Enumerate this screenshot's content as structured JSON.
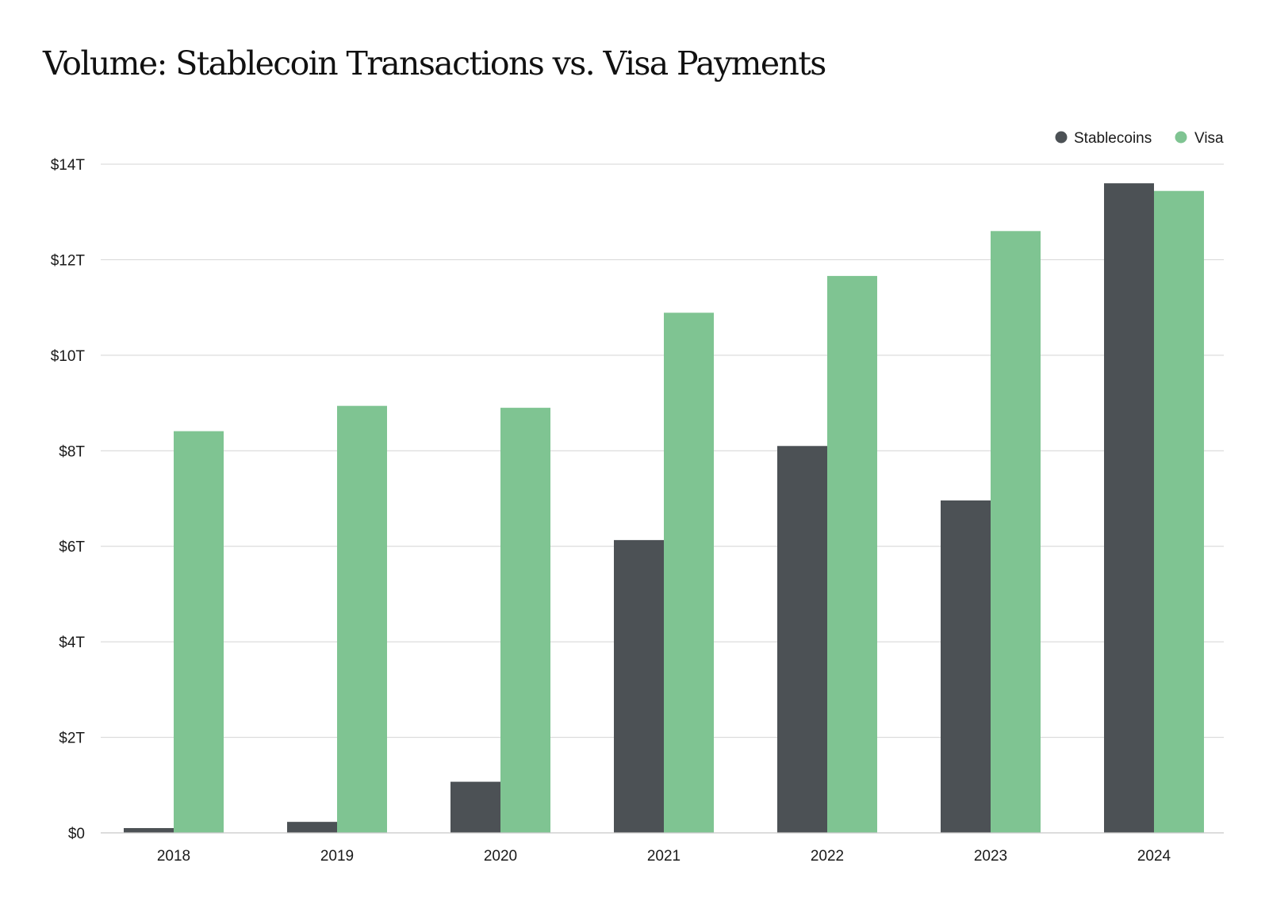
{
  "colors": {
    "stablecoins": "#4c5155",
    "visa": "#7fc492",
    "gridline": "#d4d4d4",
    "axis": "#c8c8c8",
    "text": "#1a1a1a"
  },
  "chart_data": {
    "type": "bar",
    "title": "Volume: Stablecoin Transactions vs. Visa Payments",
    "xlabel": "",
    "ylabel": "",
    "categories": [
      "2018",
      "2019",
      "2020",
      "2021",
      "2022",
      "2023",
      "2024"
    ],
    "series": [
      {
        "name": "Stablecoins",
        "color": "#4c5155",
        "values": [
          0.1,
          0.23,
          1.07,
          6.13,
          8.1,
          6.96,
          13.6
        ]
      },
      {
        "name": "Visa",
        "color": "#7fc492",
        "values": [
          8.41,
          8.94,
          8.9,
          10.89,
          11.66,
          12.6,
          13.44
        ]
      }
    ],
    "ylim": [
      0,
      14
    ],
    "yticks": [
      0,
      2,
      4,
      6,
      8,
      10,
      12,
      14
    ],
    "ytick_labels": [
      "$0",
      "$2T",
      "$4T",
      "$6T",
      "$8T",
      "$10T",
      "$12T",
      "$14T"
    ],
    "grid": true,
    "legend_position": "top-right"
  }
}
